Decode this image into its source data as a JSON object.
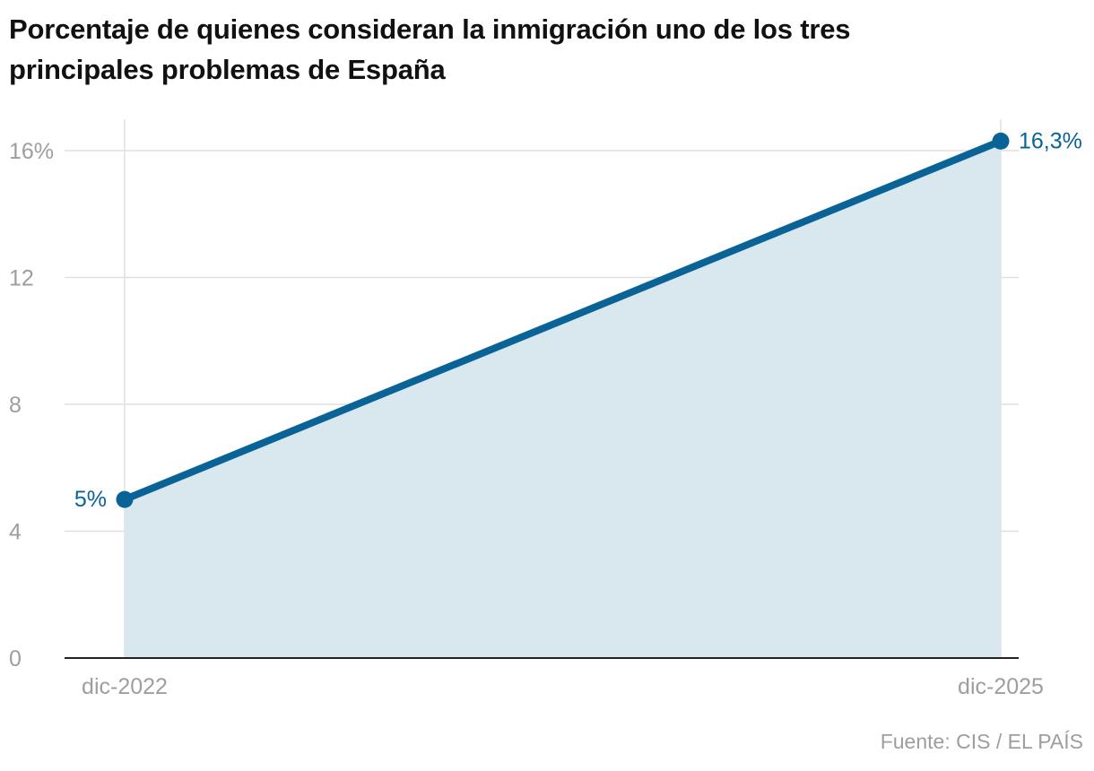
{
  "chart_data": {
    "type": "area",
    "title": "Porcentaje de quienes consideran la inmigración uno de los tres principales problemas de España",
    "categories": [
      "dic-2022",
      "dic-2025"
    ],
    "values": [
      5,
      16.3
    ],
    "value_labels": [
      "5%",
      "16,3%"
    ],
    "yticks": [
      0,
      4,
      8,
      12,
      16
    ],
    "ytick_labels": [
      "0",
      "4",
      "8",
      "12",
      "16%"
    ],
    "ylim": [
      0,
      16
    ],
    "xlabel": "",
    "ylabel": "",
    "grid": true,
    "source": "Fuente: CIS / EL PAÍS",
    "colors": {
      "line": "#0a6396",
      "area": "#d9e7ef",
      "grid": "#e0e0e0",
      "axis": "#222222",
      "tick_text": "#9e9e9e"
    }
  }
}
